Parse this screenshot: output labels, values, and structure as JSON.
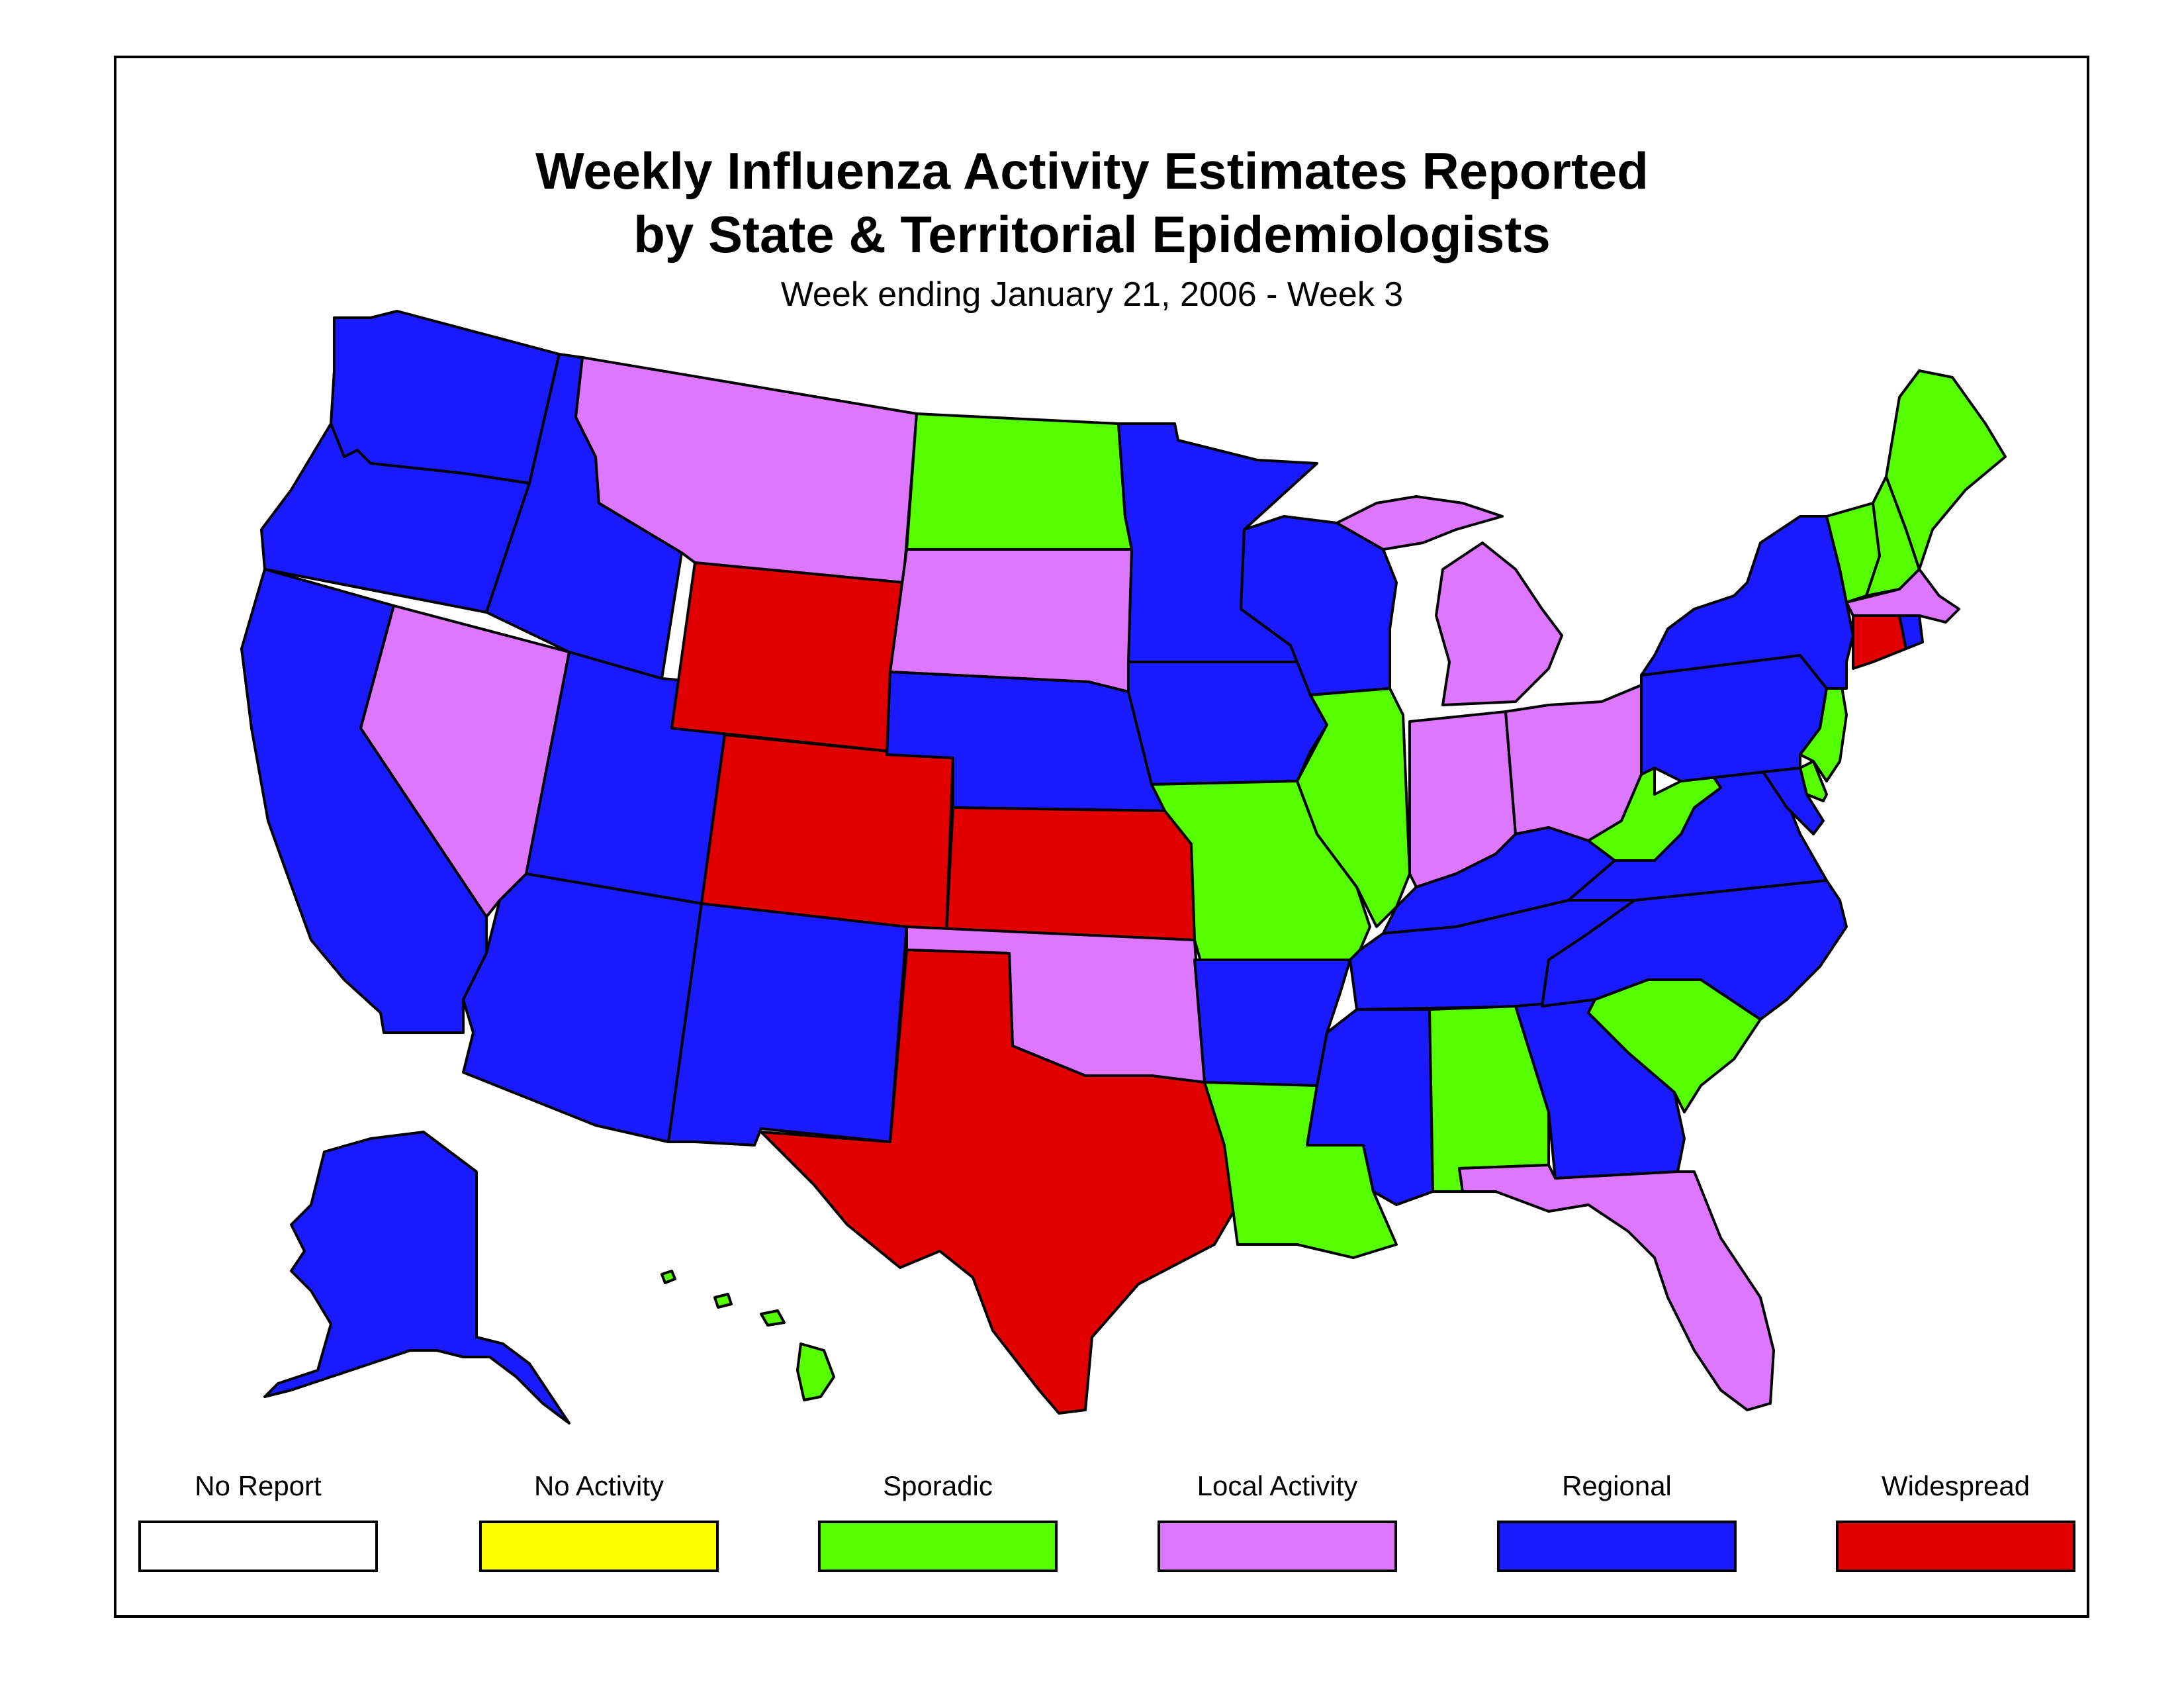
{
  "title": {
    "line1": "Weekly Influenza Activity Estimates Reported",
    "line2": "by State & Territorial Epidemiologists",
    "subtitle": "Week ending January 21, 2006 - Week 3"
  },
  "legend": [
    {
      "key": "no_report",
      "label": "No Report",
      "color": "#ffffff"
    },
    {
      "key": "no_activity",
      "label": "No Activity",
      "color": "#ffff00"
    },
    {
      "key": "sporadic",
      "label": "Sporadic",
      "color": "#55ff00"
    },
    {
      "key": "local",
      "label": "Local Activity",
      "color": "#dd77ff"
    },
    {
      "key": "regional",
      "label": "Regional",
      "color": "#1a1aff"
    },
    {
      "key": "widespread",
      "label": "Widespread",
      "color": "#e00000"
    }
  ],
  "activity_by_state": {
    "WA": "regional",
    "OR": "regional",
    "CA": "regional",
    "ID": "regional",
    "NV": "local",
    "UT": "regional",
    "AZ": "regional",
    "MT": "local",
    "WY": "widespread",
    "CO": "widespread",
    "NM": "regional",
    "ND": "sporadic",
    "SD": "local",
    "NE": "regional",
    "KS": "widespread",
    "OK": "local",
    "TX": "widespread",
    "MN": "regional",
    "IA": "regional",
    "MO": "sporadic",
    "AR": "regional",
    "LA": "sporadic",
    "WI": "regional",
    "IL": "sporadic",
    "MI": "local",
    "IN": "local",
    "OH": "local",
    "KY": "regional",
    "TN": "regional",
    "MS": "regional",
    "AL": "sporadic",
    "GA": "regional",
    "FL": "local",
    "SC": "sporadic",
    "NC": "regional",
    "VA": "regional",
    "WV": "sporadic",
    "MD": "regional",
    "DE": "sporadic",
    "NJ": "sporadic",
    "PA": "regional",
    "NY": "regional",
    "CT": "widespread",
    "RI": "regional",
    "MA": "local",
    "VT": "sporadic",
    "NH": "sporadic",
    "ME": "sporadic",
    "AK": "regional",
    "HI": "sporadic"
  }
}
